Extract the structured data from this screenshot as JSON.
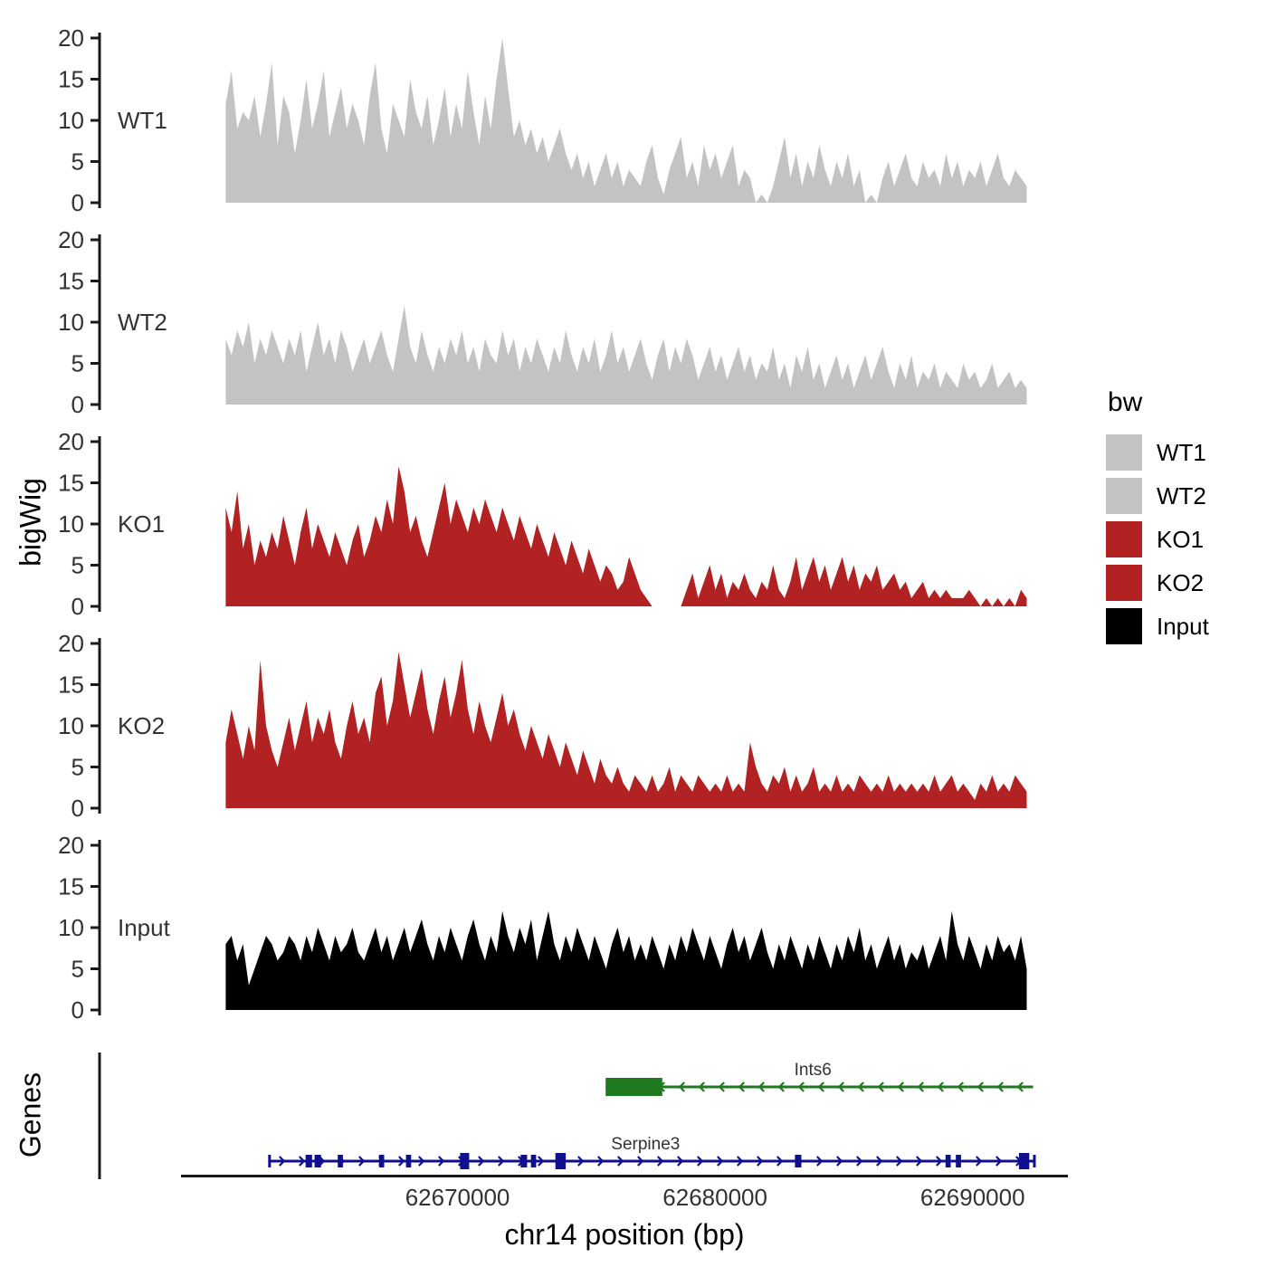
{
  "chart_data": {
    "type": "area",
    "title": "",
    "xlabel": "chr14 position (bp)",
    "ylabel": "bigWig",
    "genes_axis_label": "Genes",
    "bp_panel": [
      62656100,
      62693700
    ],
    "bp_data": [
      62661000,
      62692100
    ],
    "ylim": [
      0,
      20
    ],
    "x_axis": {
      "ticks": [
        62670000,
        62680000,
        62690000
      ],
      "tick_labels": [
        "62670000",
        "62680000",
        "62690000"
      ]
    },
    "y_axis": {
      "min": 0,
      "max": 20,
      "ticks": [
        0,
        5,
        10,
        15,
        20
      ]
    },
    "legend": {
      "title": "bw",
      "position": "right",
      "entries": [
        {
          "label": "WT1",
          "color": "#c3c3c3"
        },
        {
          "label": "WT2",
          "color": "#c3c3c3"
        },
        {
          "label": "KO1",
          "color": "#b22222"
        },
        {
          "label": "KO2",
          "color": "#b22222"
        },
        {
          "label": "Input",
          "color": "#000000"
        }
      ]
    },
    "tracks": [
      {
        "name": "WT1",
        "color": "#c3c3c3",
        "values": [
          12,
          16,
          9,
          11,
          10,
          13,
          8,
          12,
          17,
          7,
          13,
          11,
          6,
          10,
          15,
          9,
          12,
          16,
          8,
          11,
          14,
          9,
          12,
          10,
          7,
          13,
          17,
          9,
          6,
          12,
          10,
          8,
          15,
          11,
          9,
          13,
          7,
          10,
          14,
          8,
          12,
          9,
          16,
          11,
          7,
          13,
          9,
          15,
          20,
          14,
          8,
          10,
          7,
          9,
          6,
          8,
          5,
          7,
          9,
          6,
          4,
          6,
          3,
          5,
          2,
          4,
          6,
          3,
          5,
          2,
          4,
          3,
          2,
          5,
          7,
          3,
          1,
          4,
          6,
          8,
          3,
          5,
          2,
          7,
          4,
          6,
          3,
          5,
          7,
          2,
          4,
          3,
          0,
          1,
          0,
          2,
          5,
          8,
          3,
          6,
          2,
          5,
          3,
          7,
          4,
          2,
          5,
          3,
          6,
          2,
          4,
          0,
          1,
          0,
          3,
          5,
          2,
          4,
          6,
          3,
          2,
          5,
          3,
          4,
          2,
          6,
          3,
          5,
          2,
          4,
          3,
          5,
          2,
          4,
          6,
          3,
          2,
          4,
          3,
          2
        ]
      },
      {
        "name": "WT2",
        "color": "#c3c3c3",
        "values": [
          8,
          6,
          9,
          7,
          10,
          5,
          8,
          6,
          9,
          7,
          5,
          8,
          6,
          9,
          4,
          7,
          10,
          6,
          8,
          5,
          9,
          7,
          4,
          6,
          8,
          5,
          7,
          9,
          6,
          4,
          8,
          12,
          7,
          5,
          9,
          6,
          4,
          7,
          5,
          8,
          6,
          9,
          5,
          7,
          4,
          8,
          6,
          5,
          9,
          6,
          8,
          4,
          7,
          5,
          8,
          6,
          4,
          7,
          5,
          9,
          6,
          4,
          7,
          5,
          8,
          4,
          6,
          9,
          5,
          7,
          4,
          6,
          8,
          5,
          3,
          6,
          8,
          4,
          7,
          5,
          8,
          6,
          3,
          5,
          7,
          4,
          6,
          3,
          5,
          7,
          4,
          6,
          3,
          5,
          4,
          7,
          3,
          5,
          2,
          6,
          4,
          7,
          3,
          5,
          2,
          4,
          6,
          3,
          5,
          2,
          4,
          6,
          3,
          5,
          7,
          4,
          2,
          5,
          3,
          6,
          2,
          4,
          3,
          5,
          2,
          4,
          3,
          2,
          5,
          3,
          4,
          2,
          3,
          5,
          2,
          3,
          4,
          2,
          3,
          2
        ]
      },
      {
        "name": "KO1",
        "color": "#b22222",
        "values": [
          12,
          9,
          14,
          7,
          10,
          5,
          8,
          6,
          9,
          7,
          11,
          8,
          5,
          9,
          12,
          7,
          10,
          8,
          6,
          9,
          7,
          5,
          8,
          10,
          6,
          8,
          11,
          9,
          13,
          10,
          17,
          14,
          9,
          11,
          8,
          6,
          9,
          12,
          15,
          10,
          13,
          11,
          9,
          12,
          10,
          13,
          11,
          9,
          12,
          10,
          8,
          11,
          9,
          7,
          10,
          8,
          6,
          9,
          7,
          5,
          8,
          6,
          4,
          7,
          5,
          3,
          5,
          4,
          2,
          3,
          6,
          4,
          2,
          1,
          0,
          0,
          0,
          0,
          0,
          0,
          2,
          4,
          1,
          3,
          5,
          2,
          4,
          1,
          3,
          2,
          4,
          2,
          1,
          3,
          2,
          5,
          2,
          1,
          3,
          6,
          2,
          4,
          6,
          3,
          5,
          2,
          4,
          6,
          3,
          5,
          2,
          4,
          3,
          5,
          2,
          3,
          4,
          2,
          3,
          1,
          2,
          3,
          1,
          2,
          1,
          2,
          1,
          1,
          1,
          2,
          1,
          0,
          1,
          0,
          1,
          0,
          1,
          0,
          2,
          1
        ]
      },
      {
        "name": "KO2",
        "color": "#b22222",
        "values": [
          8,
          12,
          9,
          6,
          10,
          7,
          18,
          10,
          7,
          5,
          8,
          11,
          7,
          10,
          13,
          8,
          11,
          9,
          12,
          8,
          6,
          10,
          13,
          9,
          11,
          8,
          14,
          16,
          10,
          13,
          19,
          15,
          11,
          14,
          17,
          12,
          9,
          13,
          16,
          11,
          14,
          18,
          12,
          9,
          13,
          10,
          8,
          11,
          14,
          10,
          12,
          9,
          7,
          10,
          8,
          6,
          9,
          7,
          5,
          8,
          6,
          4,
          7,
          5,
          3,
          6,
          4,
          3,
          5,
          3,
          2,
          4,
          3,
          2,
          4,
          2,
          3,
          5,
          2,
          4,
          3,
          2,
          4,
          3,
          2,
          3,
          2,
          4,
          2,
          3,
          2,
          8,
          5,
          3,
          2,
          4,
          3,
          5,
          2,
          4,
          2,
          3,
          5,
          2,
          3,
          2,
          4,
          2,
          3,
          2,
          4,
          3,
          2,
          3,
          2,
          4,
          2,
          3,
          2,
          3,
          2,
          3,
          2,
          4,
          2,
          3,
          4,
          2,
          3,
          2,
          1,
          3,
          2,
          4,
          2,
          3,
          2,
          4,
          3,
          2
        ]
      },
      {
        "name": "Input",
        "color": "#000000",
        "values": [
          8,
          9,
          6,
          8,
          3,
          5,
          7,
          9,
          8,
          6,
          7,
          9,
          8,
          6,
          9,
          7,
          10,
          8,
          6,
          9,
          7,
          8,
          10,
          7,
          6,
          8,
          10,
          7,
          9,
          6,
          8,
          10,
          7,
          9,
          11,
          8,
          6,
          9,
          7,
          10,
          8,
          6,
          9,
          11,
          8,
          6,
          9,
          7,
          12,
          9,
          7,
          10,
          8,
          11,
          6,
          9,
          12,
          8,
          6,
          9,
          7,
          10,
          8,
          6,
          9,
          7,
          5,
          8,
          10,
          7,
          9,
          6,
          8,
          6,
          9,
          7,
          5,
          8,
          6,
          9,
          7,
          10,
          8,
          6,
          9,
          7,
          5,
          8,
          10,
          7,
          9,
          6,
          8,
          10,
          7,
          5,
          8,
          6,
          9,
          7,
          5,
          8,
          6,
          9,
          7,
          5,
          8,
          6,
          9,
          7,
          10,
          6,
          8,
          5,
          7,
          9,
          6,
          8,
          5,
          7,
          6,
          8,
          5,
          7,
          9,
          6,
          12,
          8,
          6,
          9,
          7,
          5,
          8,
          6,
          9,
          7,
          8,
          6,
          9,
          5
        ]
      }
    ],
    "genes": [
      {
        "name": "Ints6",
        "strand": "-",
        "color": "#1f7a1f",
        "start": 62675750,
        "end": 62692350,
        "end_markers": "none",
        "exons": [
          [
            62675750,
            62677950,
            20
          ]
        ],
        "label_bp": 62683800
      },
      {
        "name": "Serpine3",
        "strand": "+",
        "color": "#10108f",
        "start": 62662700,
        "end": 62692400,
        "end_markers": "bar",
        "exons": [
          [
            62664100,
            62664350,
            14
          ],
          [
            62664450,
            62664700,
            14
          ],
          [
            62665350,
            62665550,
            14
          ],
          [
            62666950,
            62667150,
            14
          ],
          [
            62668000,
            62668200,
            14
          ],
          [
            62670100,
            62670450,
            18
          ],
          [
            62672450,
            62672700,
            14
          ],
          [
            62672850,
            62673050,
            14
          ],
          [
            62673800,
            62674200,
            18
          ],
          [
            62683100,
            62683350,
            14
          ],
          [
            62688950,
            62689150,
            14
          ],
          [
            62689350,
            62689550,
            14
          ],
          [
            62691800,
            62692200,
            18
          ]
        ],
        "label_bp": 62677300
      }
    ]
  }
}
